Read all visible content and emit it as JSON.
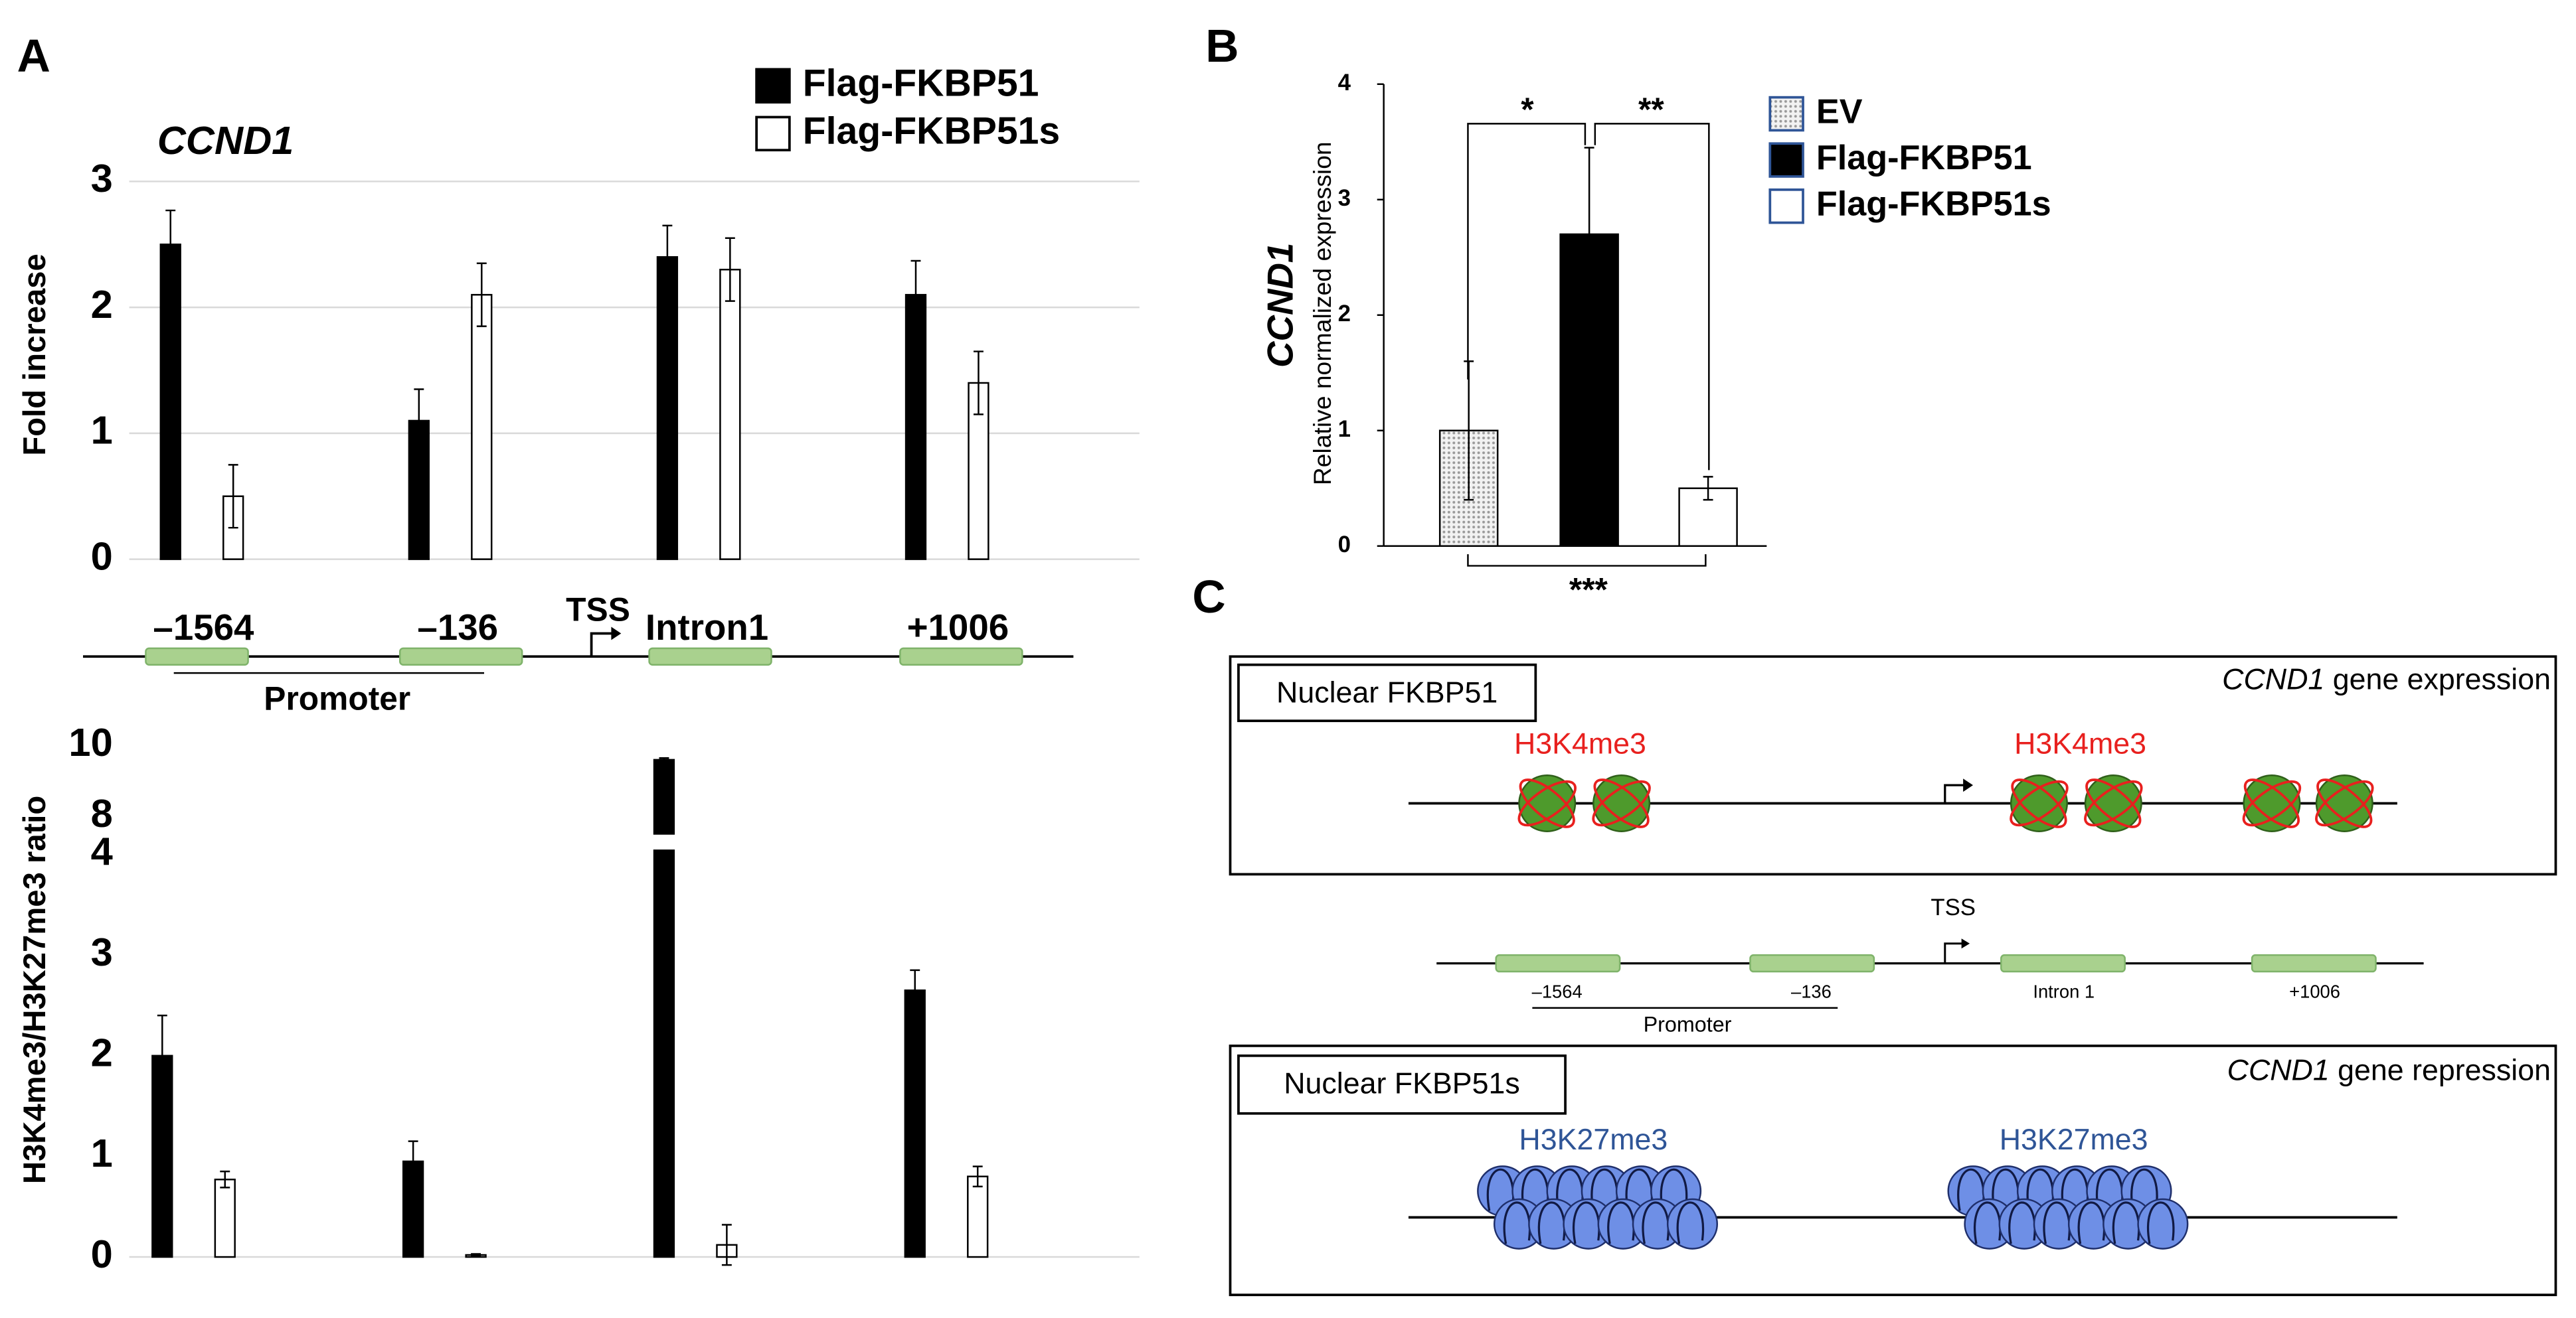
{
  "panels": {
    "a": "A",
    "b": "B",
    "c": "C"
  },
  "chart_data": [
    {
      "type": "bar",
      "title": "CCND1",
      "y_label": "Fold increase",
      "categories": [
        "–1564",
        "–136",
        "Intron1",
        "+1006"
      ],
      "series": [
        {
          "name": "Flag-FKBP51",
          "color": "#000000",
          "values": [
            2.5,
            1.1,
            2.4,
            2.1
          ],
          "errors": [
            0.27,
            0.25,
            0.25,
            0.27
          ]
        },
        {
          "name": "Flag-FKBP51s",
          "color": "#ffffff",
          "values": [
            0.5,
            2.1,
            2.3,
            1.4
          ],
          "errors": [
            0.25,
            0.25,
            0.25,
            0.25
          ]
        }
      ],
      "ylim": [
        0,
        3
      ],
      "yticks": [
        0,
        1,
        2,
        3
      ],
      "grid": true,
      "tss_label": "TSS",
      "promoter_label": "Promoter",
      "legend_position": "upper right"
    },
    {
      "type": "bar",
      "y_label": "H3K4me3/H3K27me3 ratio",
      "series": [
        {
          "name": "Flag-FKBP51",
          "color": "#000000",
          "values": [
            2.0,
            0.95,
            9.6,
            2.65
          ],
          "errors": [
            0.4,
            0.2,
            0.05,
            0.2
          ]
        },
        {
          "name": "Flag-FKBP51s",
          "color": "#ffffff",
          "values": [
            0.77,
            0.02,
            0.12,
            0.8
          ],
          "errors": [
            0.08,
            0.01,
            0.2,
            0.1
          ]
        }
      ],
      "ylim": [
        0,
        10
      ],
      "yticks": [
        0,
        1,
        2,
        3,
        4,
        8,
        10
      ],
      "axis_break": [
        4,
        8
      ],
      "grid": false
    },
    {
      "type": "bar",
      "title": "CCND1",
      "y_label": "Relative normalized expression",
      "series": [
        {
          "name": "EV",
          "color": "#9a9a9a",
          "values": [
            1.0
          ],
          "errors": [
            0.6
          ]
        },
        {
          "name": "Flag-FKBP51",
          "color": "#000000",
          "values": [
            2.7
          ],
          "errors": [
            0.75
          ]
        },
        {
          "name": "Flag-FKBP51s",
          "color": "#ffffff",
          "values": [
            0.5
          ],
          "errors": [
            0.1
          ]
        }
      ],
      "ylim": [
        0,
        4
      ],
      "yticks": [
        0,
        1,
        2,
        3,
        4
      ],
      "grid": false,
      "annotations": [
        "*",
        "**",
        "***"
      ],
      "legend_position": "upper right"
    }
  ],
  "diagram": {
    "top_box": {
      "title": "Nuclear FKBP51",
      "gene": "CCND1",
      "caption": "gene expression",
      "marks": [
        "H3K4me3",
        "H3K4me3"
      ]
    },
    "gene": {
      "tss": "TSS",
      "regions": [
        "–1564",
        "–136",
        "Intron 1",
        "+1006"
      ],
      "promoter": "Promoter"
    },
    "bottom_box": {
      "title": "Nuclear FKBP51s",
      "gene": "CCND1",
      "caption": "gene repression",
      "marks": [
        "H3K27me3",
        "H3K27me3"
      ]
    }
  }
}
